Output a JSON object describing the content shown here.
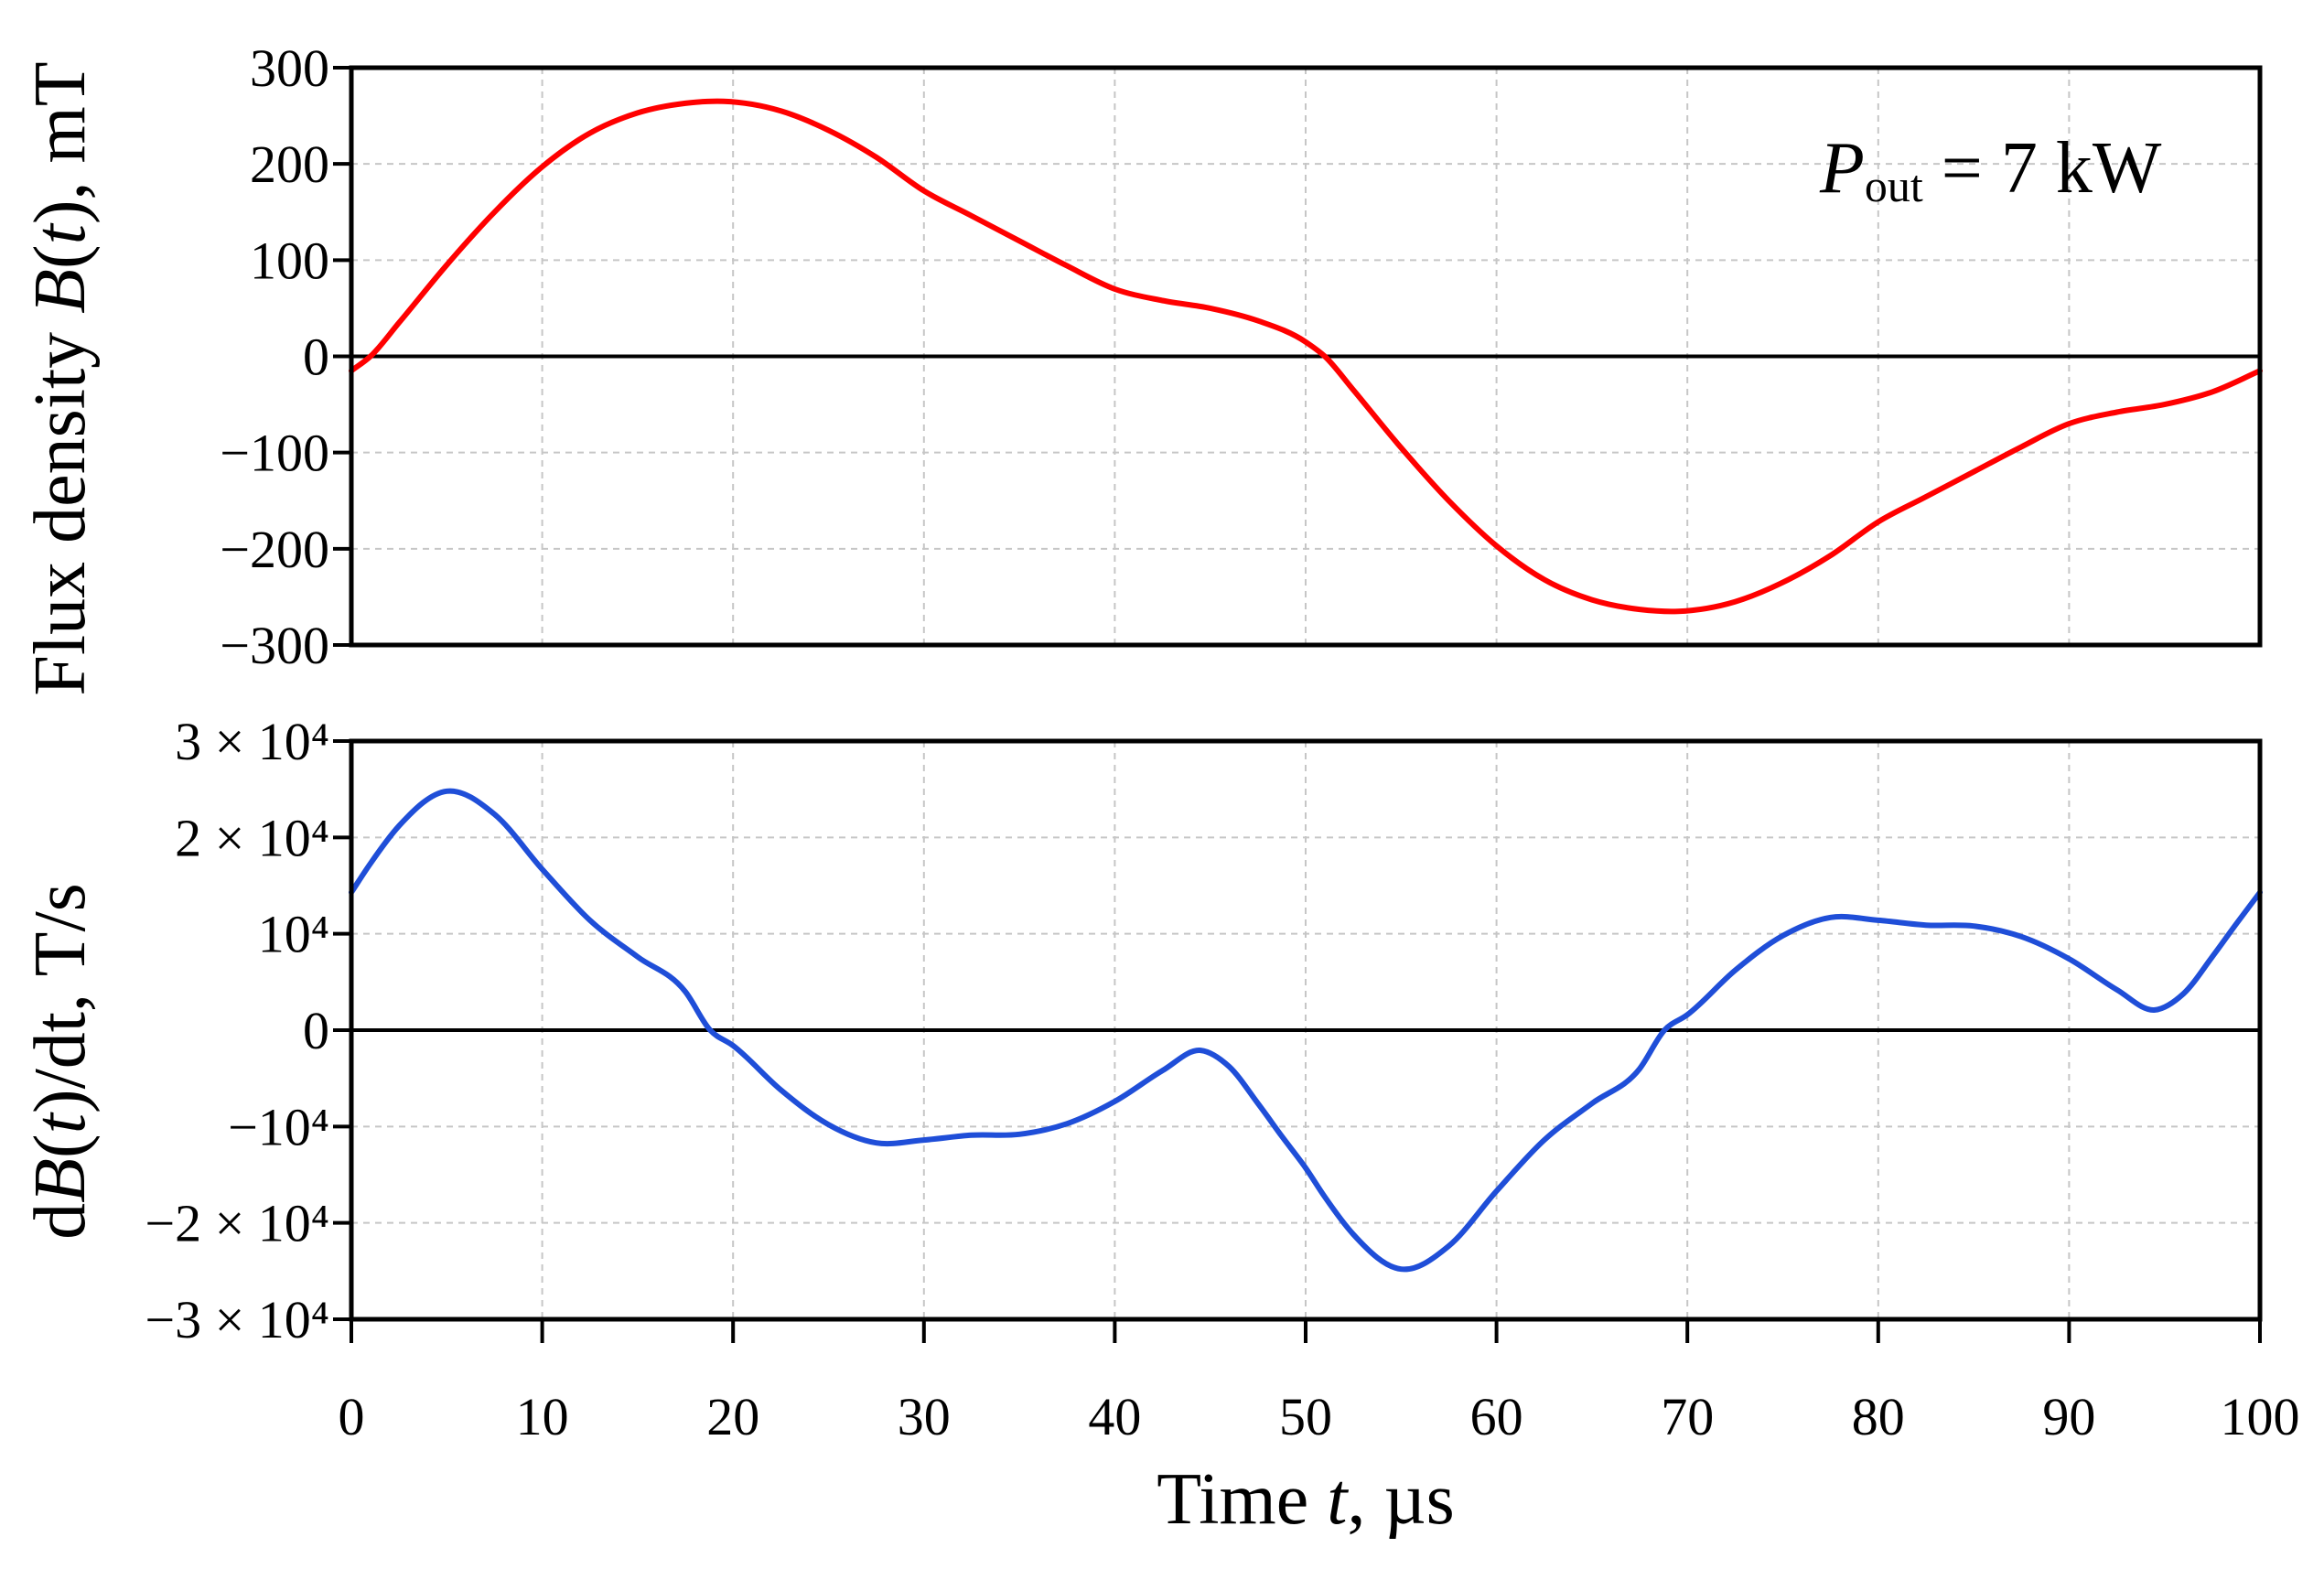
{
  "chart_data": [
    {
      "type": "line",
      "ylabel": "Flux density B(t), mT",
      "xlim": [
        0,
        100
      ],
      "ylim": [
        -300,
        300
      ],
      "xticks": [
        0,
        10,
        20,
        30,
        40,
        50,
        60,
        70,
        80,
        90,
        100
      ],
      "yticks": [
        300,
        200,
        100,
        0,
        -100,
        -200,
        -300
      ],
      "ytick_labels": [
        "300",
        "200",
        "100",
        "0",
        "−100",
        "−200",
        "−300"
      ],
      "grid": true,
      "x": [
        0,
        1,
        2.5,
        5,
        7.5,
        10,
        12.5,
        15,
        17.5,
        19.5,
        22.5,
        25,
        27.5,
        30,
        32.5,
        35,
        37.5,
        40,
        42.5,
        45,
        47.5,
        50,
        51,
        52.5,
        55,
        57.5,
        60,
        62.5,
        65,
        67.5,
        69.5,
        72.5,
        75,
        77.5,
        80,
        82.5,
        85,
        87.5,
        90,
        92.5,
        95,
        97.5,
        100
      ],
      "series": [
        {
          "color": "#ff0000",
          "values": [
            -15,
            0,
            35,
            95,
            150,
            197,
            232,
            253,
            263,
            265,
            255,
            235,
            207,
            172,
            146,
            120,
            94,
            70,
            58,
            50,
            37,
            15,
            0,
            -35,
            -95,
            -150,
            -197,
            -232,
            -253,
            -263,
            -265,
            -255,
            -235,
            -207,
            -172,
            -146,
            -120,
            -94,
            -70,
            -58,
            -50,
            -37,
            -15
          ]
        }
      ],
      "annotation": {
        "variable": "P",
        "subscript": "out",
        "value": "= 7 kW"
      }
    },
    {
      "type": "line",
      "xlabel": "Time t, µs",
      "ylabel": "dB(t)/dt, T/s",
      "xlim": [
        0,
        100
      ],
      "ylim": [
        -30000,
        30000
      ],
      "xticks": [
        0,
        10,
        20,
        30,
        40,
        50,
        60,
        70,
        80,
        90,
        100
      ],
      "xtick_labels": [
        "0",
        "10",
        "20",
        "30",
        "40",
        "50",
        "60",
        "70",
        "80",
        "90",
        "100"
      ],
      "yticks": [
        30000,
        20000,
        10000,
        0,
        -10000,
        -20000,
        -30000
      ],
      "ytick_labels": [
        "3 × 10⁴",
        "2 × 10⁴",
        "10⁴",
        "0",
        "−10⁴",
        "−2 × 10⁴",
        "−3 × 10⁴"
      ],
      "grid": true,
      "x": [
        0,
        1,
        2.5,
        5,
        7.5,
        10,
        12.5,
        15,
        17.5,
        18.8,
        20,
        22.5,
        25,
        27.5,
        30,
        32.5,
        35,
        37.5,
        40,
        42.5,
        44.5,
        46,
        47.5,
        48.75,
        50,
        51,
        52.5,
        55,
        57.5,
        60,
        62.5,
        65,
        67.5,
        68.8,
        70,
        72.5,
        75,
        77.5,
        80,
        82.5,
        85,
        87.5,
        90,
        92.5,
        94.5,
        96,
        97.5,
        98.75,
        100
      ],
      "series": [
        {
          "color": "#1f4ed8",
          "values": [
            14300,
            17300,
            21200,
            24800,
            22400,
            16700,
            11400,
            7600,
            4000,
            0,
            -1600,
            -6200,
            -9800,
            -11700,
            -11400,
            -10900,
            -10800,
            -9700,
            -7400,
            -4200,
            -2100,
            -3800,
            -7600,
            -11000,
            -14300,
            -17300,
            -21200,
            -24800,
            -22400,
            -16700,
            -11400,
            -7600,
            -4000,
            0,
            1600,
            6200,
            9800,
            11700,
            11400,
            10900,
            10800,
            9700,
            7400,
            4200,
            2100,
            3800,
            7600,
            11000,
            14300
          ]
        }
      ]
    }
  ]
}
